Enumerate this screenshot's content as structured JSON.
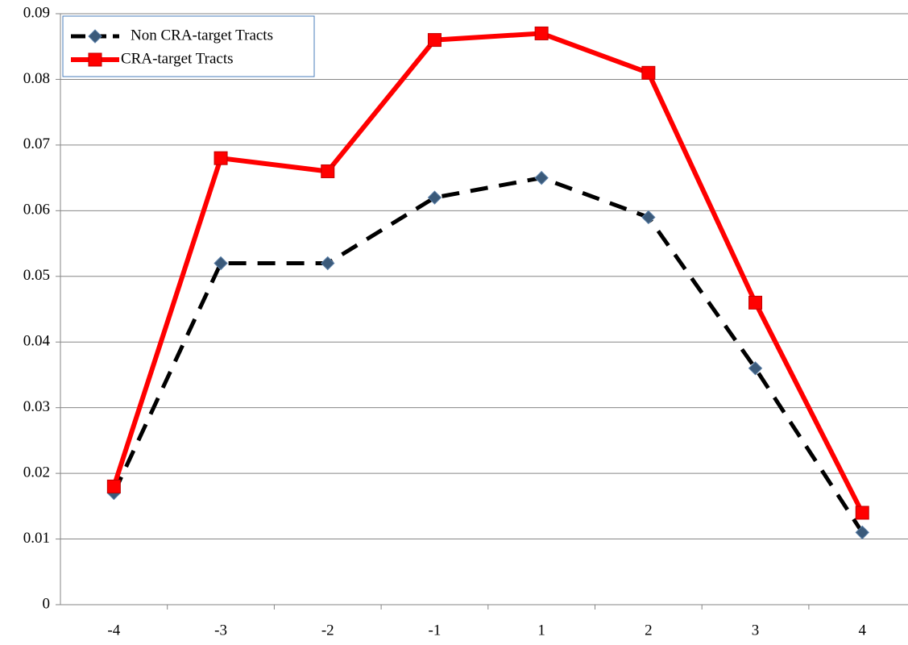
{
  "chart_data": {
    "type": "line",
    "categories": [
      "-4",
      "-3",
      "-2",
      "-1",
      "1",
      "2",
      "3",
      "4"
    ],
    "series": [
      {
        "name": "Non CRA-target Tracts",
        "color": "#000000",
        "marker_color": "#3b5a7a",
        "dash": true,
        "marker": "diamond",
        "values": [
          0.017,
          0.052,
          0.052,
          0.062,
          0.065,
          0.059,
          0.036,
          0.011
        ]
      },
      {
        "name": "CRA-target Tracts",
        "color": "#ff0000",
        "marker_color": "#ff0000",
        "dash": false,
        "marker": "square",
        "values": [
          0.018,
          0.068,
          0.066,
          0.086,
          0.087,
          0.081,
          0.046,
          0.014
        ]
      }
    ],
    "ylim": [
      0,
      0.09
    ],
    "yticks": [
      0,
      0.01,
      0.02,
      0.03,
      0.04,
      0.05,
      0.06,
      0.07,
      0.08,
      0.09
    ],
    "grid": true,
    "legend": "upper-left"
  }
}
